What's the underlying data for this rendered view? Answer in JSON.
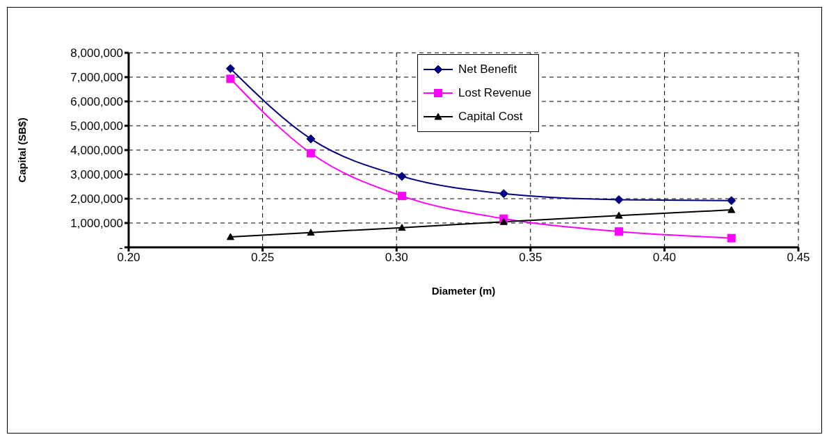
{
  "chart_data": {
    "type": "line",
    "xlabel": "Diameter (m)",
    "ylabel": "Capital (SB$)",
    "x": [
      0.238,
      0.268,
      0.302,
      0.34,
      0.383,
      0.425
    ],
    "series": [
      {
        "name": "Net Benefit",
        "color": "#000080",
        "marker": "diamond",
        "values": [
          7350000,
          4460000,
          2920000,
          2210000,
          1960000,
          1920000
        ]
      },
      {
        "name": "Lost Revenue",
        "color": "#ff00ff",
        "marker": "square",
        "values": [
          6930000,
          3870000,
          2110000,
          1180000,
          650000,
          380000
        ]
      },
      {
        "name": "Capital Cost",
        "color": "#000000",
        "marker": "triangle",
        "values": [
          430000,
          610000,
          810000,
          1050000,
          1310000,
          1540000
        ]
      }
    ],
    "xlim": [
      0.2,
      0.45
    ],
    "xticks": [
      {
        "value": 0.2,
        "label": "0.20"
      },
      {
        "value": 0.25,
        "label": "0.25"
      },
      {
        "value": 0.3,
        "label": "0.30"
      },
      {
        "value": 0.35,
        "label": "0.35"
      },
      {
        "value": 0.4,
        "label": "0.40"
      },
      {
        "value": 0.45,
        "label": "0.45"
      }
    ],
    "ylim": [
      0,
      8000000
    ],
    "yticks": [
      {
        "value": 0,
        "label": "-"
      },
      {
        "value": 1000000,
        "label": "1,000,000"
      },
      {
        "value": 2000000,
        "label": "2,000,000"
      },
      {
        "value": 3000000,
        "label": "3,000,000"
      },
      {
        "value": 4000000,
        "label": "4,000,000"
      },
      {
        "value": 5000000,
        "label": "5,000,000"
      },
      {
        "value": 6000000,
        "label": "6,000,000"
      },
      {
        "value": 7000000,
        "label": "7,000,000"
      },
      {
        "value": 8000000,
        "label": "8,000,000"
      }
    ],
    "grid": true,
    "legend": "top",
    "line_style": "solid"
  }
}
